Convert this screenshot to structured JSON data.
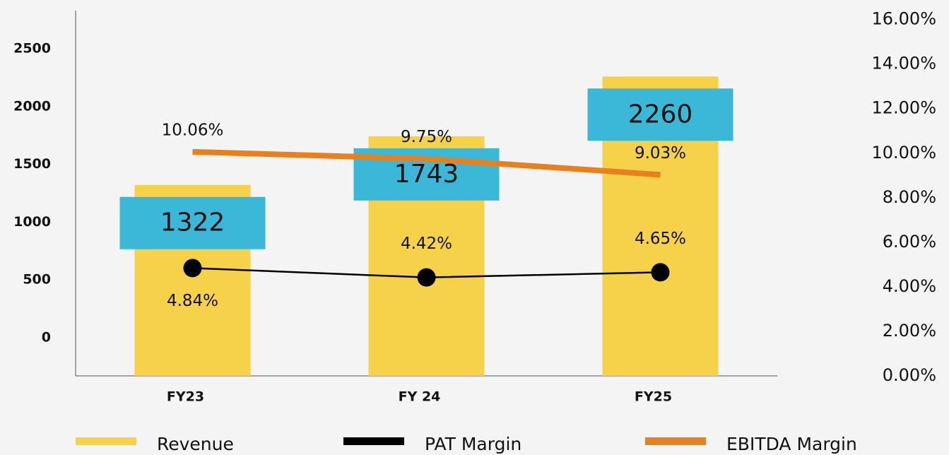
{
  "chart_data": {
    "type": "bar",
    "categories": [
      "FY23",
      "FY 24",
      "FY25"
    ],
    "ylim": [
      -330,
      2830
    ],
    "yticks": [
      0,
      500,
      1000,
      1500,
      2000,
      2500
    ],
    "y2lim": [
      0,
      16.4
    ],
    "y2ticks": [
      {
        "value": 0,
        "label": "0.00%"
      },
      {
        "value": 2,
        "label": "2.00%"
      },
      {
        "value": 4,
        "label": "4.00%"
      },
      {
        "value": 6,
        "label": "6.00%"
      },
      {
        "value": 8,
        "label": "8.00%"
      },
      {
        "value": 10,
        "label": "10.00%"
      },
      {
        "value": 12,
        "label": "12.00%"
      },
      {
        "value": 14,
        "label": "14.00%"
      },
      {
        "value": 16,
        "label": "16.00%"
      }
    ],
    "series": [
      {
        "name": "Revenue",
        "type": "bar",
        "color": "#f6d24a",
        "label_color": "#3bb7d7",
        "values": [
          1322,
          1743,
          2260
        ]
      },
      {
        "name": "PAT Margin",
        "type": "line",
        "axis": "y2",
        "color": "#000000",
        "markers": true,
        "values": [
          4.84,
          4.42,
          4.65
        ],
        "value_labels": [
          "4.84%",
          "4.42%",
          "4.65%"
        ]
      },
      {
        "name": "EBITDA Margin",
        "type": "line",
        "axis": "y2",
        "color": "#e8801e",
        "markers": false,
        "values": [
          10.06,
          9.75,
          9.03
        ],
        "value_labels": [
          "10.06%",
          "9.75%",
          "9.03%"
        ]
      }
    ]
  }
}
